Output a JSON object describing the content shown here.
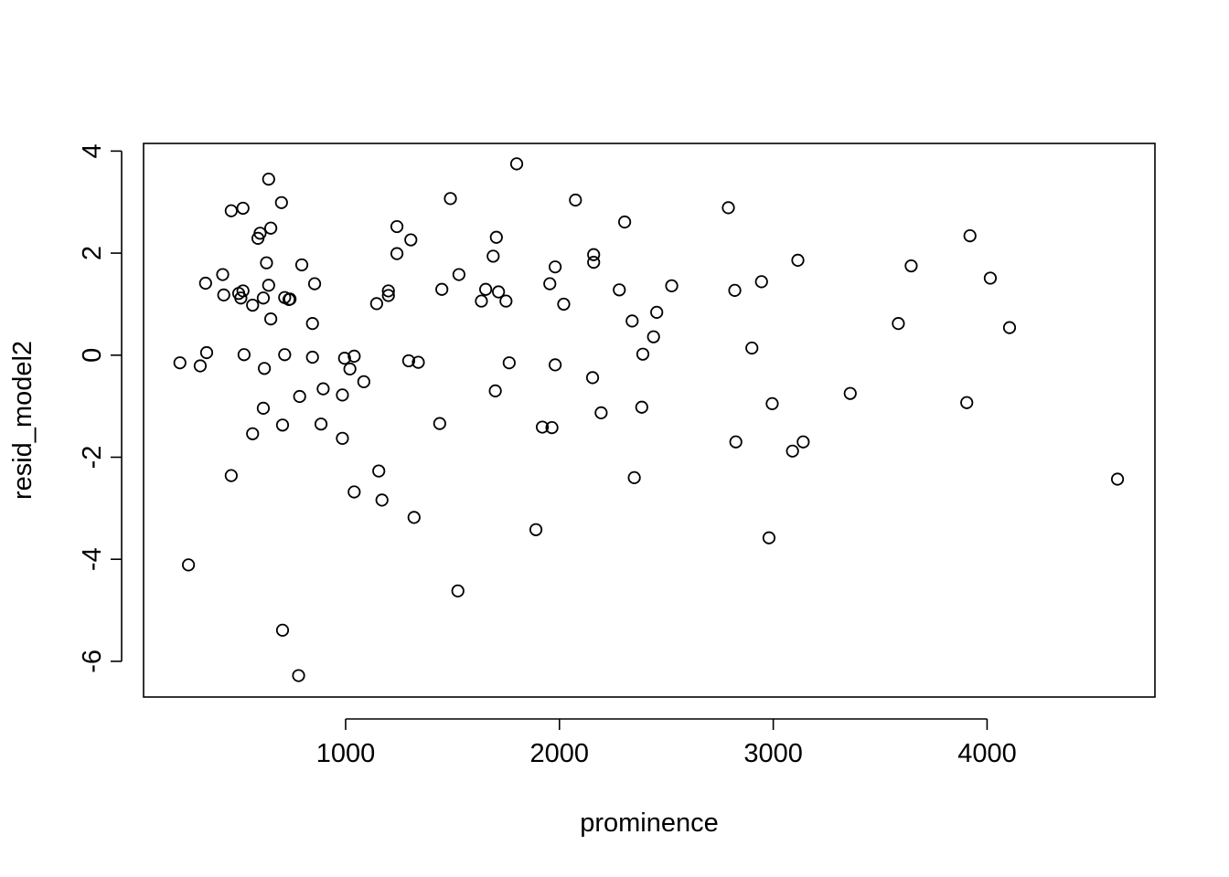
{
  "chart_data": {
    "type": "scatter",
    "xlabel": "prominence",
    "ylabel": "resid_model2",
    "xlim": [
      55,
      4785
    ],
    "ylim": [
      -6.7,
      4.15
    ],
    "xticks": [
      1000,
      2000,
      3000,
      4000
    ],
    "yticks": [
      -6,
      -4,
      -2,
      0,
      2,
      4
    ],
    "xtick_labels": [
      "1000",
      "2000",
      "3000",
      "4000"
    ],
    "ytick_labels": [
      "-6",
      "-4",
      "-2",
      "0",
      "2",
      "4"
    ],
    "grid": false,
    "legend": "none",
    "points": [
      {
        "x": 640,
        "y": 3.45
      },
      {
        "x": 1800,
        "y": 3.75
      },
      {
        "x": 700,
        "y": 2.99
      },
      {
        "x": 1490,
        "y": 3.07
      },
      {
        "x": 2075,
        "y": 3.04
      },
      {
        "x": 2790,
        "y": 2.89
      },
      {
        "x": 465,
        "y": 2.83
      },
      {
        "x": 520,
        "y": 2.88
      },
      {
        "x": 2305,
        "y": 2.61
      },
      {
        "x": 1240,
        "y": 2.52
      },
      {
        "x": 650,
        "y": 2.49
      },
      {
        "x": 600,
        "y": 2.39
      },
      {
        "x": 590,
        "y": 2.29
      },
      {
        "x": 1305,
        "y": 2.26
      },
      {
        "x": 1705,
        "y": 2.31
      },
      {
        "x": 3920,
        "y": 2.34
      },
      {
        "x": 1240,
        "y": 1.99
      },
      {
        "x": 1690,
        "y": 1.94
      },
      {
        "x": 2160,
        "y": 1.97
      },
      {
        "x": 2160,
        "y": 1.82
      },
      {
        "x": 3115,
        "y": 1.86
      },
      {
        "x": 630,
        "y": 1.81
      },
      {
        "x": 795,
        "y": 1.77
      },
      {
        "x": 1980,
        "y": 1.73
      },
      {
        "x": 3645,
        "y": 1.75
      },
      {
        "x": 425,
        "y": 1.58
      },
      {
        "x": 1530,
        "y": 1.58
      },
      {
        "x": 4015,
        "y": 1.51
      },
      {
        "x": 345,
        "y": 1.41
      },
      {
        "x": 855,
        "y": 1.4
      },
      {
        "x": 640,
        "y": 1.37
      },
      {
        "x": 1955,
        "y": 1.4
      },
      {
        "x": 2525,
        "y": 1.36
      },
      {
        "x": 2945,
        "y": 1.44
      },
      {
        "x": 1450,
        "y": 1.29
      },
      {
        "x": 1655,
        "y": 1.29
      },
      {
        "x": 1715,
        "y": 1.24
      },
      {
        "x": 2280,
        "y": 1.28
      },
      {
        "x": 2820,
        "y": 1.27
      },
      {
        "x": 1200,
        "y": 1.26
      },
      {
        "x": 520,
        "y": 1.26
      },
      {
        "x": 500,
        "y": 1.21
      },
      {
        "x": 430,
        "y": 1.18
      },
      {
        "x": 1200,
        "y": 1.17
      },
      {
        "x": 615,
        "y": 1.12
      },
      {
        "x": 510,
        "y": 1.12
      },
      {
        "x": 715,
        "y": 1.13
      },
      {
        "x": 735,
        "y": 1.09
      },
      {
        "x": 740,
        "y": 1.1
      },
      {
        "x": 1635,
        "y": 1.06
      },
      {
        "x": 1750,
        "y": 1.06
      },
      {
        "x": 1145,
        "y": 1.01
      },
      {
        "x": 2020,
        "y": 1.0
      },
      {
        "x": 565,
        "y": 0.98
      },
      {
        "x": 2455,
        "y": 0.84
      },
      {
        "x": 650,
        "y": 0.71
      },
      {
        "x": 2340,
        "y": 0.67
      },
      {
        "x": 3585,
        "y": 0.62
      },
      {
        "x": 845,
        "y": 0.62
      },
      {
        "x": 4105,
        "y": 0.54
      },
      {
        "x": 2440,
        "y": 0.36
      },
      {
        "x": 2900,
        "y": 0.14
      },
      {
        "x": 350,
        "y": 0.05
      },
      {
        "x": 525,
        "y": 0.01
      },
      {
        "x": 715,
        "y": 0.01
      },
      {
        "x": 845,
        "y": -0.04
      },
      {
        "x": 1040,
        "y": -0.02
      },
      {
        "x": 995,
        "y": -0.06
      },
      {
        "x": 2390,
        "y": 0.02
      },
      {
        "x": 225,
        "y": -0.15
      },
      {
        "x": 320,
        "y": -0.21
      },
      {
        "x": 620,
        "y": -0.26
      },
      {
        "x": 1020,
        "y": -0.27
      },
      {
        "x": 1295,
        "y": -0.11
      },
      {
        "x": 1340,
        "y": -0.14
      },
      {
        "x": 1765,
        "y": -0.15
      },
      {
        "x": 1980,
        "y": -0.19
      },
      {
        "x": 2155,
        "y": -0.44
      },
      {
        "x": 1085,
        "y": -0.52
      },
      {
        "x": 895,
        "y": -0.66
      },
      {
        "x": 1700,
        "y": -0.7
      },
      {
        "x": 3360,
        "y": -0.75
      },
      {
        "x": 985,
        "y": -0.78
      },
      {
        "x": 785,
        "y": -0.81
      },
      {
        "x": 2995,
        "y": -0.95
      },
      {
        "x": 3905,
        "y": -0.93
      },
      {
        "x": 2385,
        "y": -1.02
      },
      {
        "x": 615,
        "y": -1.04
      },
      {
        "x": 2195,
        "y": -1.13
      },
      {
        "x": 705,
        "y": -1.37
      },
      {
        "x": 885,
        "y": -1.35
      },
      {
        "x": 1440,
        "y": -1.34
      },
      {
        "x": 1920,
        "y": -1.41
      },
      {
        "x": 1965,
        "y": -1.42
      },
      {
        "x": 565,
        "y": -1.54
      },
      {
        "x": 985,
        "y": -1.63
      },
      {
        "x": 2825,
        "y": -1.7
      },
      {
        "x": 3140,
        "y": -1.7
      },
      {
        "x": 3090,
        "y": -1.88
      },
      {
        "x": 1155,
        "y": -2.27
      },
      {
        "x": 465,
        "y": -2.36
      },
      {
        "x": 2350,
        "y": -2.4
      },
      {
        "x": 4610,
        "y": -2.43
      },
      {
        "x": 1040,
        "y": -2.68
      },
      {
        "x": 1170,
        "y": -2.84
      },
      {
        "x": 1320,
        "y": -3.18
      },
      {
        "x": 1890,
        "y": -3.42
      },
      {
        "x": 2980,
        "y": -3.58
      },
      {
        "x": 265,
        "y": -4.11
      },
      {
        "x": 1525,
        "y": -4.62
      },
      {
        "x": 705,
        "y": -5.39
      },
      {
        "x": 780,
        "y": -6.28
      }
    ]
  }
}
